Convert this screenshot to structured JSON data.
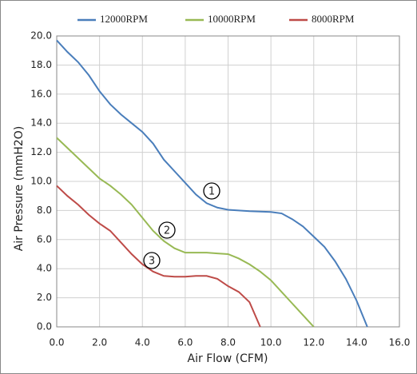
{
  "chart_data": {
    "type": "line",
    "xlabel": "Air Flow (CFM)",
    "ylabel": "Air Pressure (mmH2O)",
    "xlim": [
      0,
      16
    ],
    "ylim": [
      0,
      20
    ],
    "xticks": [
      {
        "value": 0,
        "label": "0.0"
      },
      {
        "value": 2,
        "label": "2.0"
      },
      {
        "value": 4,
        "label": "4.0"
      },
      {
        "value": 6,
        "label": "6.0"
      },
      {
        "value": 8,
        "label": "8.0"
      },
      {
        "value": 10,
        "label": "10.0"
      },
      {
        "value": 12,
        "label": "12.0"
      },
      {
        "value": 14,
        "label": "14.0"
      },
      {
        "value": 16,
        "label": "16.0"
      }
    ],
    "yticks": [
      {
        "value": 0,
        "label": "0.0"
      },
      {
        "value": 2,
        "label": "2.0"
      },
      {
        "value": 4,
        "label": "4.0"
      },
      {
        "value": 6,
        "label": "6.0"
      },
      {
        "value": 8,
        "label": "8.0"
      },
      {
        "value": 10,
        "label": "10.0"
      },
      {
        "value": 12,
        "label": "12.0"
      },
      {
        "value": 14,
        "label": "14.0"
      },
      {
        "value": 16,
        "label": "16.0"
      },
      {
        "value": 18,
        "label": "18.0"
      },
      {
        "value": 20,
        "label": "20.0"
      }
    ],
    "grid": true,
    "legend": "top",
    "series": [
      {
        "name": "12000RPM",
        "color": "#4a7ebb",
        "x": [
          0,
          0.5,
          1,
          1.5,
          2,
          2.5,
          3,
          3.5,
          4,
          4.5,
          5,
          5.5,
          6,
          6.5,
          7,
          7.5,
          8,
          8.5,
          9,
          10,
          10.5,
          11,
          11.5,
          12,
          12.5,
          13,
          13.5,
          14,
          14.5
        ],
        "values": [
          19.7,
          18.9,
          18.2,
          17.3,
          16.2,
          15.3,
          14.6,
          14.0,
          13.4,
          12.6,
          11.5,
          10.7,
          9.9,
          9.1,
          8.5,
          8.2,
          8.05,
          8.0,
          7.95,
          7.9,
          7.8,
          7.4,
          6.9,
          6.2,
          5.5,
          4.5,
          3.3,
          1.8,
          0
        ]
      },
      {
        "name": "10000RPM",
        "color": "#98b954",
        "x": [
          0,
          0.5,
          1,
          1.5,
          2,
          2.5,
          3,
          3.5,
          4,
          4.5,
          5,
          5.5,
          6,
          6.5,
          7,
          7.5,
          8,
          8.5,
          9,
          9.5,
          10,
          10.5,
          11,
          11.5,
          12
        ],
        "values": [
          13.0,
          12.3,
          11.6,
          10.9,
          10.2,
          9.7,
          9.1,
          8.4,
          7.5,
          6.6,
          5.9,
          5.4,
          5.1,
          5.1,
          5.1,
          5.05,
          5.0,
          4.7,
          4.3,
          3.8,
          3.2,
          2.4,
          1.6,
          0.8,
          0
        ]
      },
      {
        "name": "8000RPM",
        "color": "#be4b48",
        "x": [
          0,
          0.5,
          1,
          1.5,
          2,
          2.5,
          3,
          3.5,
          4,
          4.5,
          5,
          5.5,
          6,
          6.5,
          7,
          7.5,
          8,
          8.5,
          9,
          9.5
        ],
        "values": [
          9.7,
          9.0,
          8.4,
          7.7,
          7.1,
          6.6,
          5.8,
          5.0,
          4.3,
          3.8,
          3.5,
          3.45,
          3.45,
          3.5,
          3.5,
          3.3,
          2.8,
          2.4,
          1.7,
          0
        ]
      }
    ],
    "annotations": [
      "1",
      "2",
      "3"
    ]
  }
}
